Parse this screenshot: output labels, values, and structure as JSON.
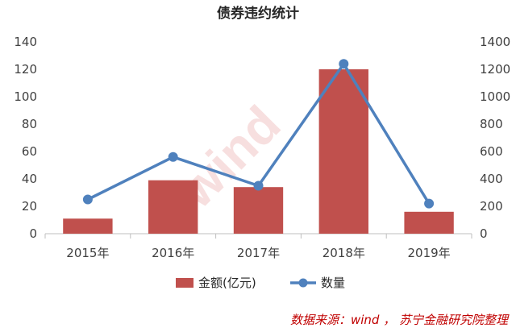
{
  "chart_data": {
    "type": "bar+line",
    "title": "债券违约统计",
    "categories": [
      "2015年",
      "2016年",
      "2017年",
      "2018年",
      "2019年"
    ],
    "series": [
      {
        "name": "金额(亿元)",
        "type": "bar",
        "axis": "left",
        "values": [
          11,
          39,
          34,
          120,
          16
        ],
        "color": "#c0504d"
      },
      {
        "name": "数量",
        "type": "line",
        "axis": "right",
        "values": [
          250,
          560,
          350,
          1240,
          220
        ],
        "color": "#4f81bd"
      }
    ],
    "y_left": {
      "min": 0,
      "max": 140,
      "ticks": [
        "0",
        "20",
        "40",
        "60",
        "80",
        "100",
        "120",
        "140"
      ]
    },
    "y_right": {
      "min": 0,
      "max": 1400,
      "ticks": [
        "0",
        "200",
        "400",
        "600",
        "800",
        "1000",
        "1200",
        "1400"
      ]
    },
    "grid": false,
    "legend_position": "bottom",
    "watermark": "wind",
    "source": "数据来源：wind ， 苏宁金融研究院整理"
  }
}
